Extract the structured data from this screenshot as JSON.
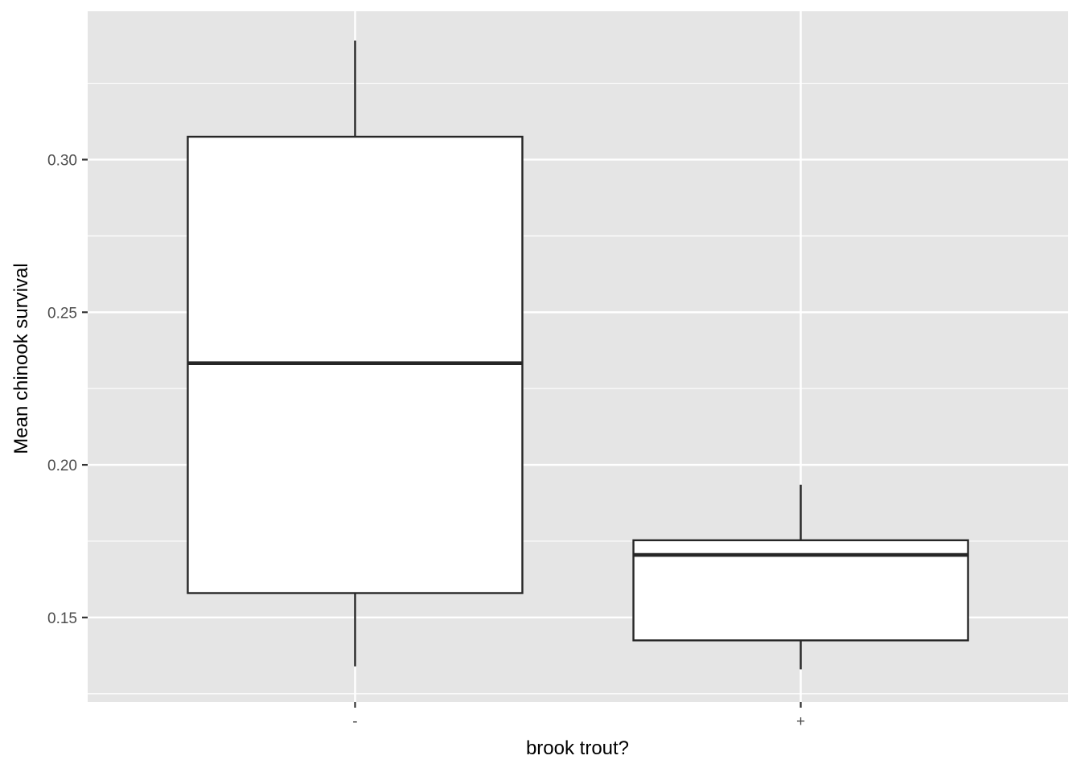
{
  "chart_data": {
    "type": "boxplot",
    "title": "",
    "xlabel": "brook trout?",
    "ylabel": "Mean chinook survival",
    "categories": [
      "-",
      "+"
    ],
    "boxes": [
      {
        "category": "-",
        "min": 0.134,
        "q1": 0.158,
        "median": 0.2333,
        "q3": 0.3075,
        "max": 0.339
      },
      {
        "category": "+",
        "min": 0.133,
        "q1": 0.1425,
        "median": 0.1705,
        "q3": 0.1753,
        "max": 0.1935
      }
    ],
    "ylim": [
      0.1223,
      0.3486
    ],
    "y_major_ticks": [
      0.15,
      0.2,
      0.25,
      0.3
    ],
    "y_tick_labels": [
      "0.15",
      "0.20",
      "0.25",
      "0.30"
    ],
    "y_minor_ticks": [
      0.125,
      0.175,
      0.225,
      0.275,
      0.325
    ],
    "grid": true,
    "colors": {
      "panel_background": "#e5e5e5",
      "grid_line": "#ffffff",
      "box_fill": "#ffffff",
      "box_stroke": "#262626"
    }
  }
}
